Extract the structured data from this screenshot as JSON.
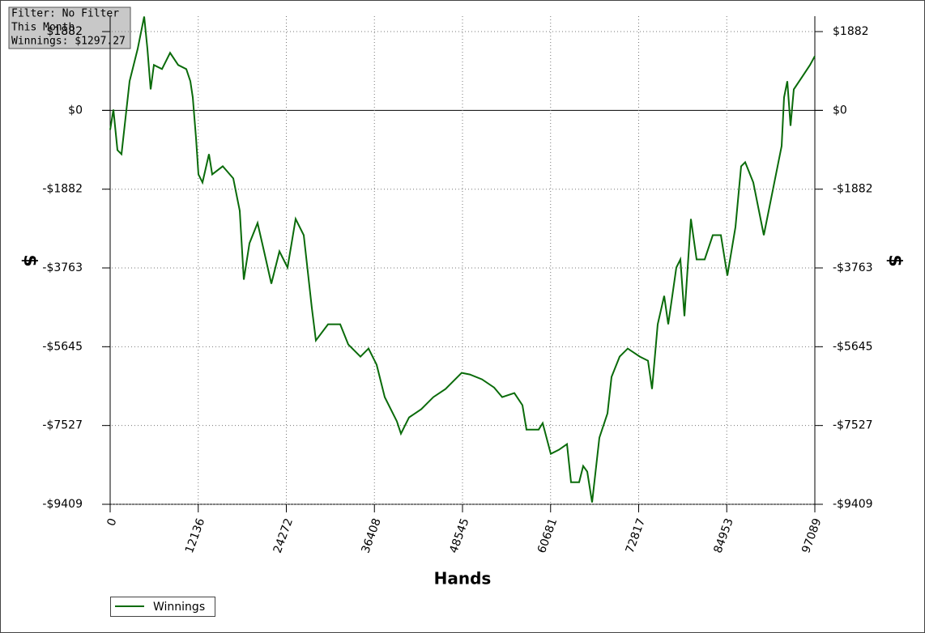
{
  "chart_data": {
    "type": "line",
    "annotations": [
      "Filter: No Filter",
      "This Month",
      "Winnings: $1297.27"
    ],
    "xlabel": "Hands",
    "ylabel": "$",
    "x": [
      0,
      446,
      1004,
      1562,
      2678,
      3794,
      4687,
      5134,
      5580,
      6026,
      7142,
      8258,
      9374,
      10490,
      11048,
      11383,
      11830,
      12164,
      12722,
      13615,
      14062,
      15512,
      16963,
      17856,
      18414,
      19195,
      20311,
      21204,
      22208,
      23324,
      24440,
      25556,
      26672,
      27788,
      28346,
      30020,
      31694,
      32810,
      34484,
      35600,
      36716,
      37832,
      39506,
      40064,
      41180,
      42854,
      44528,
      46202,
      47318,
      48434,
      49550,
      51224,
      52898,
      54014,
      55688,
      56804,
      57362,
      59036,
      59594,
      60710,
      61826,
      62942,
      63500,
      64616,
      65174,
      65732,
      66402,
      67406,
      68522,
      69080,
      70196,
      71312,
      72986,
      74102,
      74660,
      75442,
      76334,
      76892,
      78008,
      78566,
      79124,
      80017,
      80798,
      81914,
      83030,
      84146,
      85039,
      86155,
      86936,
      87494,
      88610,
      90061,
      91400,
      92516,
      92851,
      93298,
      93744,
      94190,
      95306,
      96422,
      97089
    ],
    "series": [
      {
        "name": "Winnings",
        "color": "#0a6b0a",
        "values": [
          -464,
          19,
          -948,
          -1045,
          697,
          1471,
          2240,
          1471,
          503,
          1084,
          987,
          1374,
          1084,
          987,
          697,
          310,
          -658,
          -1529,
          -1722,
          -1045,
          -1529,
          -1335,
          -1625,
          -2399,
          -4044,
          -3173,
          -2690,
          -3367,
          -4141,
          -3367,
          -3754,
          -2593,
          -2980,
          -4721,
          -5495,
          -5108,
          -5108,
          -5592,
          -5882,
          -5689,
          -6076,
          -6849,
          -7430,
          -7721,
          -7334,
          -7140,
          -6849,
          -6656,
          -6463,
          -6269,
          -6308,
          -6424,
          -6618,
          -6849,
          -6753,
          -7043,
          -7624,
          -7624,
          -7469,
          -8204,
          -8108,
          -7972,
          -8882,
          -8882,
          -8495,
          -8630,
          -9365,
          -7817,
          -7237,
          -6366,
          -5882,
          -5689,
          -5882,
          -5979,
          -6656,
          -5108,
          -4431,
          -5108,
          -3754,
          -3560,
          -4915,
          -2593,
          -3560,
          -3560,
          -2980,
          -2980,
          -3947,
          -2786,
          -1335,
          -1238,
          -1722,
          -2980,
          -1819,
          -851,
          310,
          697,
          -368,
          503,
          793,
          1084,
          1297
        ]
      }
    ],
    "xlim": [
      0,
      97089
    ],
    "xticks": [
      0,
      12136,
      24272,
      36408,
      48545,
      60681,
      72817,
      84953,
      97089
    ],
    "ylim": [
      -9409,
      2250
    ],
    "yticks": [
      {
        "value": -9409,
        "label": "-$9409"
      },
      {
        "value": -7527,
        "label": "-$7527"
      },
      {
        "value": -5645,
        "label": "-$5645"
      },
      {
        "value": -3763,
        "label": "-$3763"
      },
      {
        "value": -1882,
        "label": "-$1882"
      },
      {
        "value": 0,
        "label": "$0"
      },
      {
        "value": 1882,
        "label": "$1882"
      }
    ],
    "grid": true,
    "legend": "bottom-left"
  }
}
